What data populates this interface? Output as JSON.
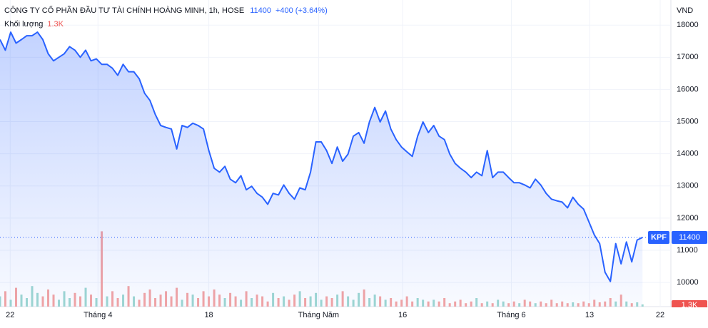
{
  "header": {
    "title": "CÔNG TY CỔ PHẦN ĐẦU TƯ TÀI CHÍNH HOÀNG MINH, 1h, HOSE",
    "price": 11400,
    "change": "+400 (+3.64%)"
  },
  "chart_data": {
    "type": "area",
    "y_axis_label": "VND",
    "series": [
      {
        "name": "KPF",
        "color": "#2962ff",
        "values": [
          17550,
          17220,
          17780,
          17440,
          17550,
          17670,
          17670,
          17780,
          17550,
          17110,
          16890,
          17000,
          17110,
          17330,
          17220,
          17000,
          17220,
          16890,
          16950,
          16780,
          16780,
          16660,
          16440,
          16780,
          16550,
          16550,
          16330,
          15880,
          15660,
          15220,
          14880,
          14820,
          14770,
          14150,
          14880,
          14820,
          14950,
          14880,
          14770,
          14100,
          13550,
          13430,
          13610,
          13210,
          13100,
          13320,
          12880,
          12990,
          12770,
          12650,
          12430,
          12770,
          12720,
          13030,
          12770,
          12590,
          12940,
          12880,
          13430,
          14370,
          14370,
          14100,
          13700,
          14210,
          13770,
          13990,
          14550,
          14660,
          14330,
          14990,
          15440,
          14990,
          15330,
          14770,
          14440,
          14210,
          14060,
          13920,
          14550,
          14990,
          14660,
          14880,
          14550,
          14440,
          13990,
          13700,
          13550,
          13430,
          13260,
          13430,
          13320,
          14100,
          13260,
          13430,
          13430,
          13260,
          13100,
          13100,
          13030,
          12940,
          13210,
          13030,
          12770,
          12590,
          12540,
          12500,
          12320,
          12650,
          12430,
          12280,
          11880,
          11480,
          11210,
          10320,
          10030,
          11210,
          10580,
          11260,
          10640,
          11320,
          11400
        ]
      }
    ],
    "volume": {
      "name": "Khối lượng",
      "last_label": "1.3K",
      "up_color": "#9fd8d1",
      "down_color": "#f5a5a3",
      "values": [
        6000,
        9000,
        4000,
        11000,
        7000,
        5000,
        12000,
        8000,
        6000,
        10000,
        7000,
        4000,
        9000,
        5000,
        8000,
        6000,
        11000,
        7000,
        5000,
        44000,
        6000,
        9000,
        5000,
        7000,
        12000,
        6000,
        4000,
        8000,
        10000,
        5000,
        7000,
        9000,
        6000,
        11000,
        4000,
        8000,
        7000,
        5000,
        9000,
        6000,
        10000,
        7000,
        5000,
        8000,
        6000,
        4000,
        9000,
        5000,
        7000,
        6000,
        3000,
        8000,
        5000,
        6000,
        4000,
        7000,
        9000,
        5000,
        6000,
        8000,
        4000,
        6000,
        5000,
        7000,
        9000,
        6000,
        4000,
        8000,
        10000,
        5000,
        7000,
        6000,
        4000,
        5000,
        3000,
        4000,
        6000,
        3000,
        5000,
        4000,
        3000,
        4000,
        3000,
        5000,
        2000,
        3000,
        4000,
        2000,
        3000,
        5000,
        2000,
        3000,
        2000,
        4000,
        3000,
        2000,
        3000,
        2000,
        4000,
        3000,
        2000,
        3000,
        2000,
        4000,
        2000,
        3000,
        2000,
        2500,
        2000,
        3000,
        2000,
        4000,
        2500,
        3000,
        5000,
        3000,
        7000,
        3000,
        2000,
        2500,
        1300
      ],
      "vlim": [
        0,
        50000
      ]
    },
    "xlim": [
      0,
      125.3
    ],
    "xticks": [
      {
        "value": 1.9,
        "label": "22"
      },
      {
        "value": 18.3,
        "label": "Tháng 4"
      },
      {
        "value": 39,
        "label": "18"
      },
      {
        "value": 59.5,
        "label": "Tháng Năm"
      },
      {
        "value": 75.2,
        "label": "16"
      },
      {
        "value": 95.5,
        "label": "Tháng 6"
      },
      {
        "value": 110.1,
        "label": "13"
      },
      {
        "value": 123.3,
        "label": "22"
      }
    ],
    "ylim": [
      9250,
      18780
    ],
    "yticks": [
      10000,
      11000,
      12000,
      13000,
      14000,
      15000,
      16000,
      17000,
      18000
    ],
    "grid": true
  }
}
